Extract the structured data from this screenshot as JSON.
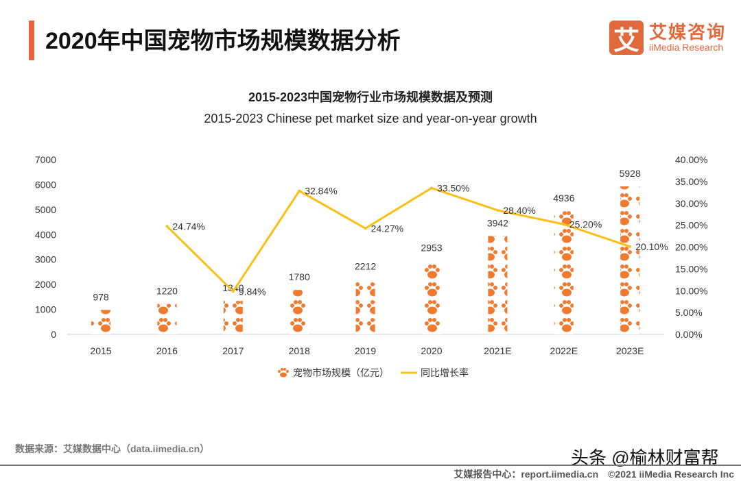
{
  "header": {
    "title": "2020年中国宠物市场规模数据分析",
    "logo_mark": "艾",
    "logo_cn": "艾媒咨询",
    "logo_en": "iiMedia Research"
  },
  "chart_data": {
    "type": "bar+line",
    "title": "2015-2023中国宠物行业市场规模数据及预测",
    "subtitle": "2015-2023 Chinese pet market size and year-on-year growth",
    "categories": [
      "2015",
      "2016",
      "2017",
      "2018",
      "2019",
      "2020",
      "2021E",
      "2022E",
      "2023E"
    ],
    "series": [
      {
        "name": "宠物市场规模（亿元）",
        "type": "bar",
        "values": [
          978,
          1220,
          1340,
          1780,
          2212,
          2953,
          3942,
          4936,
          5928
        ],
        "color": "#f07a30"
      },
      {
        "name": "同比增长率",
        "type": "line",
        "values": [
          null,
          24.74,
          9.84,
          32.84,
          24.27,
          33.5,
          28.4,
          25.2,
          20.1
        ],
        "labels": [
          "",
          "24.74%",
          "9.84%",
          "32.84%",
          "24.27%",
          "33.50%",
          "28.40%",
          "25.20%",
          "20.10%"
        ],
        "color": "#fbbf14"
      }
    ],
    "y_left": {
      "ylim": [
        0,
        7000
      ],
      "ticks": [
        "0",
        "1000",
        "2000",
        "3000",
        "4000",
        "5000",
        "6000",
        "7000"
      ]
    },
    "y_right": {
      "ylim": [
        0,
        40
      ],
      "ticks": [
        "0.00%",
        "5.00%",
        "10.00%",
        "15.00%",
        "20.00%",
        "25.00%",
        "30.00%",
        "35.00%",
        "40.00%"
      ]
    },
    "grid": false,
    "legend": "bottom"
  },
  "footer": {
    "source": "数据来源：艾媒数据中心（data.iimedia.cn）",
    "report": "艾媒报告中心：report.iimedia.cn",
    "copyright": "©2021  iiMedia Research  Inc",
    "watermark": "头条 @榆林财富帮"
  }
}
